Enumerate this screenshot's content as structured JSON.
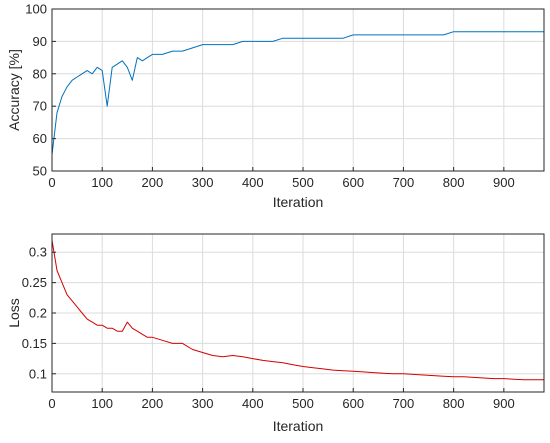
{
  "chart_data": [
    {
      "type": "line",
      "title": "",
      "xlabel": "Iteration",
      "ylabel": "Accuracy [%]",
      "xlim": [
        0,
        980
      ],
      "ylim": [
        50,
        100
      ],
      "xticks": [
        "0",
        "100",
        "200",
        "300",
        "400",
        "500",
        "600",
        "700",
        "800",
        "900"
      ],
      "yticks": [
        "50",
        "60",
        "70",
        "80",
        "90",
        "100"
      ],
      "grid": true,
      "legend": "none",
      "series": [
        {
          "name": "",
          "color": "#0072BD",
          "x": [
            0,
            10,
            20,
            30,
            40,
            50,
            60,
            70,
            80,
            90,
            100,
            110,
            120,
            130,
            140,
            150,
            160,
            170,
            180,
            190,
            200,
            220,
            240,
            260,
            280,
            300,
            320,
            340,
            360,
            380,
            400,
            420,
            440,
            460,
            480,
            500,
            520,
            540,
            560,
            580,
            600,
            620,
            640,
            660,
            680,
            700,
            720,
            740,
            760,
            780,
            800,
            820,
            840,
            860,
            880,
            900,
            920,
            940,
            960,
            980
          ],
          "values": [
            55,
            68,
            73,
            76,
            78,
            79,
            80,
            81,
            80,
            82,
            81,
            70,
            82,
            83,
            84,
            82,
            78,
            85,
            84,
            85,
            86,
            86,
            87,
            87,
            88,
            89,
            89,
            89,
            89,
            90,
            90,
            90,
            90,
            91,
            91,
            91,
            91,
            91,
            91,
            91,
            92,
            92,
            92,
            92,
            92,
            92,
            92,
            92,
            92,
            92,
            93,
            93,
            93,
            93,
            93,
            93,
            93,
            93,
            93,
            93
          ]
        }
      ]
    },
    {
      "type": "line",
      "title": "",
      "xlabel": "Iteration",
      "ylabel": "Loss",
      "xlim": [
        0,
        980
      ],
      "ylim": [
        0.07,
        0.33
      ],
      "xticks": [
        "0",
        "100",
        "200",
        "300",
        "400",
        "500",
        "600",
        "700",
        "800",
        "900"
      ],
      "yticks": [
        "0.1",
        "0.15",
        "0.2",
        "0.25",
        "0.3"
      ],
      "grid": true,
      "legend": "none",
      "series": [
        {
          "name": "",
          "color": "#D40000",
          "x": [
            0,
            10,
            20,
            30,
            40,
            50,
            60,
            70,
            80,
            90,
            100,
            110,
            120,
            130,
            140,
            150,
            160,
            170,
            180,
            190,
            200,
            220,
            240,
            260,
            280,
            300,
            320,
            340,
            360,
            380,
            400,
            420,
            440,
            460,
            480,
            500,
            520,
            540,
            560,
            580,
            600,
            620,
            640,
            660,
            680,
            700,
            720,
            740,
            760,
            780,
            800,
            820,
            840,
            860,
            880,
            900,
            920,
            940,
            960,
            980
          ],
          "values": [
            0.32,
            0.27,
            0.25,
            0.23,
            0.22,
            0.21,
            0.2,
            0.19,
            0.185,
            0.18,
            0.18,
            0.175,
            0.175,
            0.17,
            0.17,
            0.185,
            0.175,
            0.17,
            0.165,
            0.16,
            0.16,
            0.155,
            0.15,
            0.15,
            0.14,
            0.135,
            0.13,
            0.128,
            0.13,
            0.128,
            0.125,
            0.122,
            0.12,
            0.118,
            0.115,
            0.112,
            0.11,
            0.108,
            0.106,
            0.105,
            0.104,
            0.103,
            0.102,
            0.101,
            0.1,
            0.1,
            0.099,
            0.098,
            0.097,
            0.096,
            0.095,
            0.095,
            0.094,
            0.093,
            0.092,
            0.092,
            0.091,
            0.09,
            0.09,
            0.09
          ]
        }
      ]
    }
  ]
}
